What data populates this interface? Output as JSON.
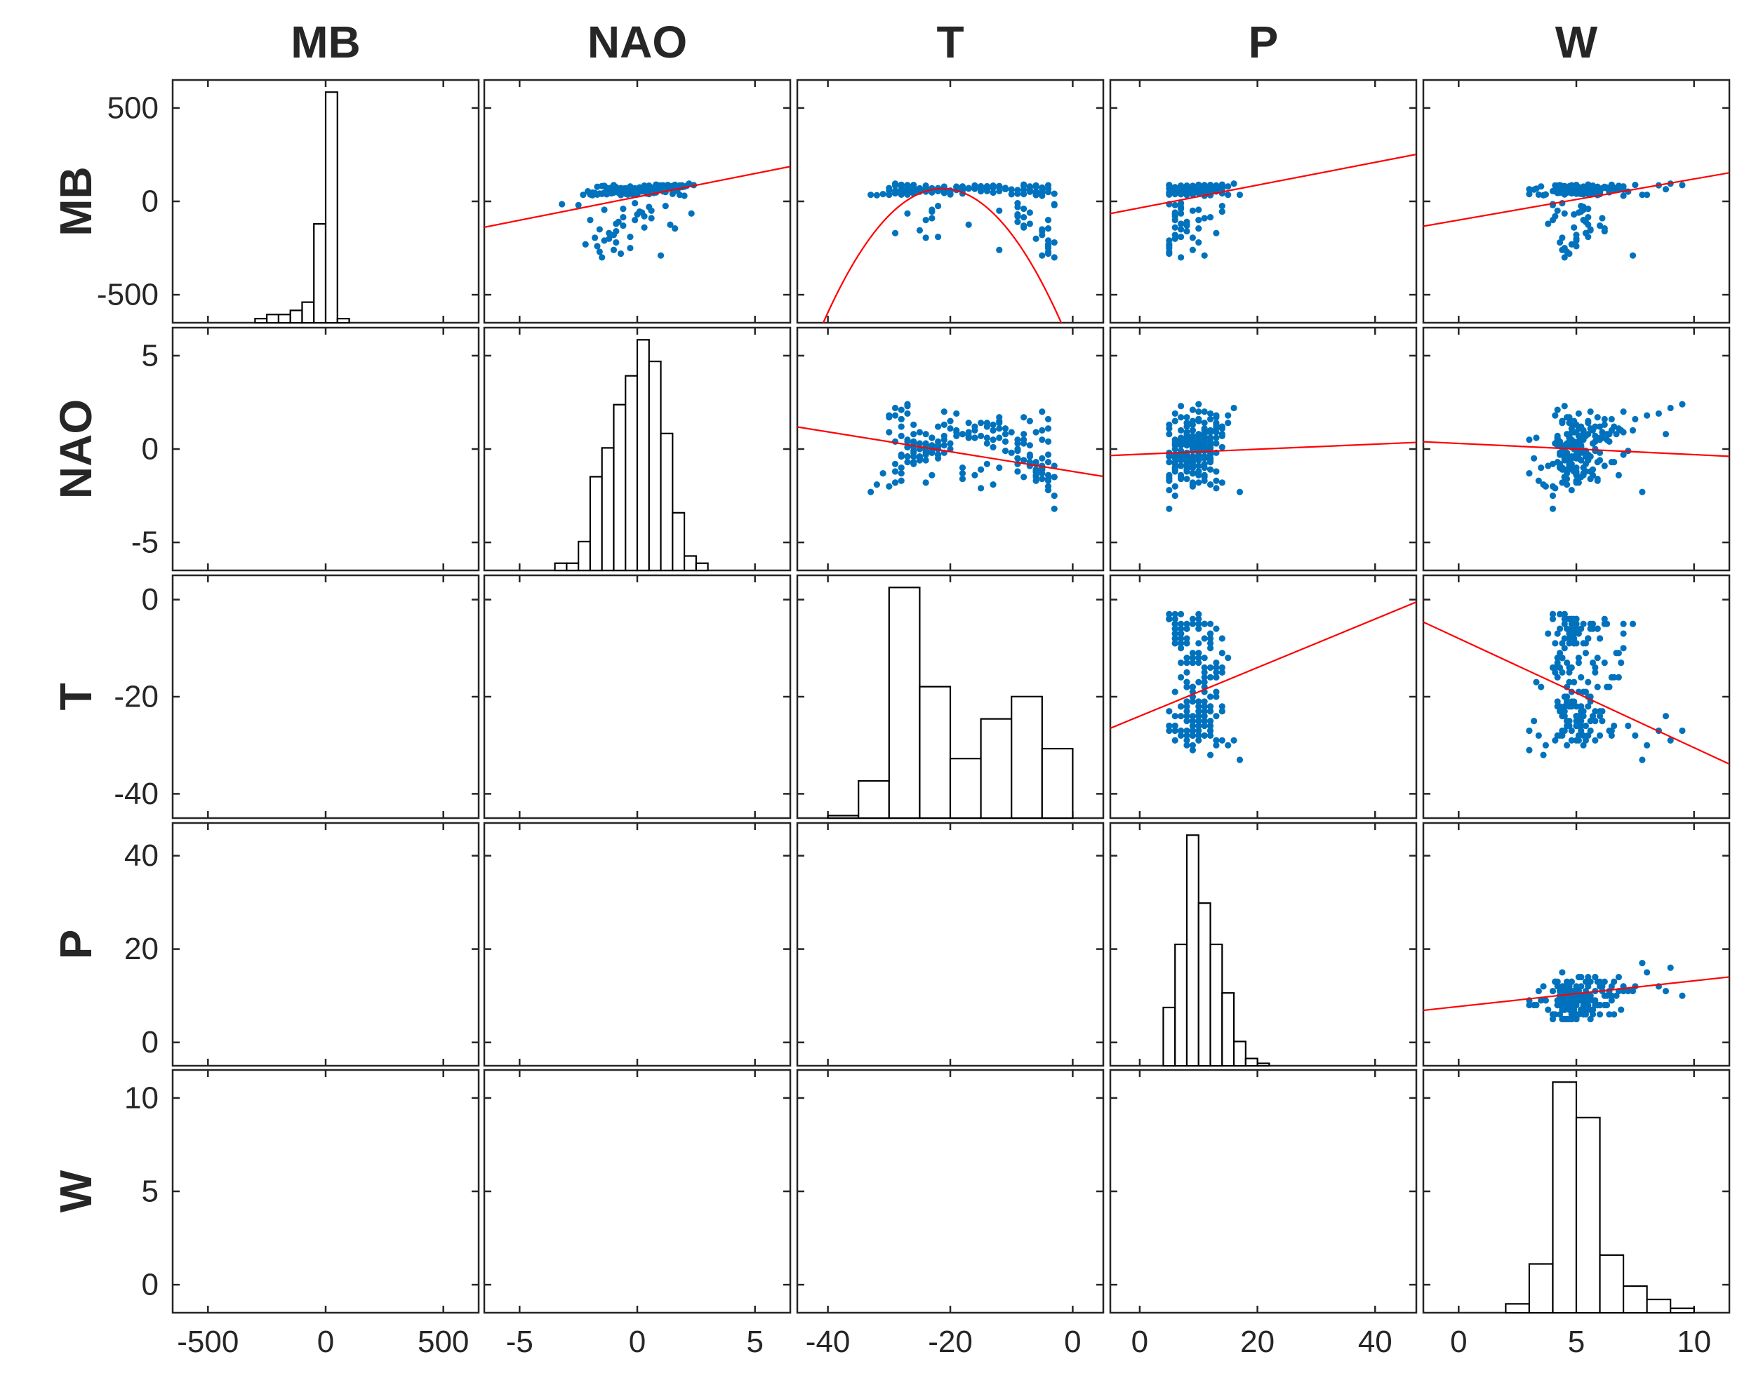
{
  "chart_data": {
    "type": "scatter-matrix",
    "variables": [
      "MB",
      "NAO",
      "T",
      "P",
      "W"
    ],
    "limits": {
      "MB": [
        -650,
        650
      ],
      "NAO": [
        -6.5,
        6.5
      ],
      "T": [
        -45,
        5
      ],
      "P": [
        -5,
        47
      ],
      "W": [
        -1.5,
        11.5
      ]
    },
    "ticks": {
      "MB": [
        -500,
        0,
        500
      ],
      "NAO": [
        -5,
        0,
        5
      ],
      "T": [
        -40,
        -20,
        0
      ],
      "P": [
        0,
        20,
        40
      ],
      "W": [
        0,
        5,
        10
      ]
    },
    "tick_labels": {
      "MB": [
        "-500",
        "0",
        "500"
      ],
      "NAO": [
        "-5",
        "0",
        "5"
      ],
      "T": [
        "-40",
        "-20",
        "0"
      ],
      "P": [
        "0",
        "20",
        "40"
      ],
      "W": [
        "0",
        "5",
        "10"
      ]
    },
    "colors": {
      "points": "#0072BD",
      "fit": "#FF0000",
      "bars": "#000000",
      "axes": "#262626"
    },
    "histograms": {
      "MB": {
        "edges": [
          -300,
          -250,
          -200,
          -150,
          -100,
          -50,
          0,
          50,
          100,
          150
        ],
        "counts": [
          1,
          2,
          2,
          3,
          5,
          24,
          56,
          1,
          0
        ],
        "count_max": 56,
        "note": "bar heights relative to tallest bar"
      },
      "NAO": {
        "edges": [
          -3.5,
          -3,
          -2.5,
          -2,
          -1.5,
          -1,
          -0.5,
          0,
          0.5,
          1,
          1.5,
          2,
          2.5,
          3
        ],
        "counts": [
          1,
          1,
          4,
          13,
          17,
          23,
          27,
          32,
          29,
          19,
          8,
          2,
          1
        ]
      },
      "T": {
        "edges": [
          -40,
          -35,
          -30,
          -25,
          -20,
          -15,
          -10,
          -5,
          0
        ],
        "counts": [
          1,
          15,
          93,
          53,
          24,
          40,
          49,
          28
        ]
      },
      "P": {
        "edges": [
          4,
          6,
          8,
          10,
          12,
          14,
          16,
          18,
          20,
          22
        ],
        "counts": [
          24,
          50,
          95,
          67,
          50,
          30,
          10,
          3,
          1
        ]
      },
      "W": {
        "edges": [
          2,
          3,
          4,
          5,
          6,
          7,
          8,
          9,
          10
        ],
        "counts": [
          2,
          11,
          52,
          44,
          13,
          6,
          3,
          1
        ]
      }
    },
    "fits": [
      {
        "x": "NAO",
        "y": "MB",
        "type": "linear",
        "coef": [
          25,
          24
        ]
      },
      {
        "x": "T",
        "y": "MB",
        "type": "quadratic",
        "coef": [
          -1.9,
          -81,
          -795
        ]
      },
      {
        "x": "P",
        "y": "MB",
        "type": "linear",
        "coef": [
          6.1,
          -35
        ]
      },
      {
        "x": "W",
        "y": "MB",
        "type": "linear",
        "coef": [
          22,
          -100
        ]
      },
      {
        "x": "T",
        "y": "NAO",
        "type": "linear",
        "coef": [
          -0.053,
          -1.2
        ]
      },
      {
        "x": "P",
        "y": "NAO",
        "type": "linear",
        "coef": [
          0.0135,
          -0.28
        ]
      },
      {
        "x": "W",
        "y": "NAO",
        "type": "linear",
        "coef": [
          -0.06,
          0.3
        ]
      },
      {
        "x": "P",
        "y": "T",
        "type": "linear",
        "coef": [
          0.5,
          -24
        ]
      },
      {
        "x": "W",
        "y": "T",
        "type": "linear",
        "coef": [
          -2.25,
          -8
        ]
      },
      {
        "x": "W",
        "y": "P",
        "type": "linear",
        "coef": [
          0.55,
          7.7
        ]
      }
    ],
    "scatter_panels": [
      {
        "x": "NAO",
        "y": "MB"
      },
      {
        "x": "T",
        "y": "MB"
      },
      {
        "x": "P",
        "y": "MB"
      },
      {
        "x": "W",
        "y": "MB"
      },
      {
        "x": "T",
        "y": "NAO"
      },
      {
        "x": "P",
        "y": "NAO"
      },
      {
        "x": "W",
        "y": "NAO"
      },
      {
        "x": "P",
        "y": "T"
      },
      {
        "x": "W",
        "y": "T"
      },
      {
        "x": "W",
        "y": "P"
      }
    ],
    "points": {
      "MB": [
        60,
        70,
        50,
        80,
        90,
        30,
        -100,
        -300,
        75,
        60,
        40,
        55,
        65,
        -200,
        -250,
        85,
        45,
        -50,
        70,
        35,
        58,
        68,
        -120,
        78,
        48,
        62,
        -20,
        52,
        88,
        74,
        -280,
        42,
        66,
        57,
        -150,
        71,
        63,
        95,
        38,
        -80,
        59,
        69,
        46,
        81,
        -180,
        54,
        61,
        33,
        77,
        67,
        -60,
        49,
        73,
        56,
        84,
        -230,
        44,
        64,
        -10,
        79,
        51,
        72,
        36,
        -140,
        86,
        58,
        66,
        41,
        -90,
        76,
        53,
        68,
        47,
        82,
        -270,
        60,
        39,
        70,
        55,
        -40,
        87,
        62,
        50,
        74,
        -110,
        65,
        43,
        78,
        57,
        -210,
        69,
        34,
        83,
        52,
        -30,
        61,
        71,
        45,
        80,
        -160,
        56,
        67,
        37,
        89,
        -70,
        63,
        48,
        75,
        58,
        -240,
        54,
        72,
        40,
        85,
        -130,
        66,
        59,
        44,
        77,
        -15,
        53,
        68,
        35,
        81,
        -190,
        61,
        49,
        73,
        57,
        -100,
        64,
        42,
        86,
        55,
        -260,
        70,
        46,
        79,
        60,
        -55,
        67,
        38,
        83,
        51,
        -170,
        62,
        74,
        47,
        88,
        -85,
        58,
        65,
        43,
        76,
        -220,
        56,
        69,
        36,
        82,
        -25,
        63,
        50,
        71,
        54,
        -145,
        68,
        41,
        84,
        59,
        -290,
        57,
        73,
        45,
        78,
        -65,
        66,
        52,
        39,
        87,
        -125,
        60,
        70,
        48,
        80,
        -195,
        55,
        64,
        44,
        75,
        -45,
        62,
        71,
        37,
        85,
        -155,
        59,
        67,
        50,
        79,
        -235,
        53,
        72,
        46,
        83,
        -95,
        65,
        58,
        40,
        86,
        -175,
        61,
        69
      ],
      "NAO": [
        0.3,
        -0.5,
        1.2,
        -1.0,
        0.8,
        2.0,
        -2.0,
        -1.5,
        0.1,
        -0.2,
        1.5,
        -0.8,
        0.5,
        -1.2,
        -0.3,
        1.0,
        -1.8,
        0.6,
        -0.1,
        1.8,
        0.2,
        -0.6,
        -0.9,
        1.3,
        -0.4,
        0.7,
        -2.5,
        0.0,
        1.6,
        -1.1,
        -0.7,
        0.4,
        1.1,
        -0.3,
        -1.6,
        0.9,
        -0.5,
        2.2,
        -1.3,
        0.3,
        0.6,
        -0.2,
        -1.4,
        1.4,
        -1.0,
        0.1,
        0.8,
        -1.9,
        1.7,
        -0.6,
        0.2,
        -0.8,
        1.2,
        0.0,
        0.5,
        -2.2,
        -0.4,
        0.9,
        -0.1,
        1.0,
        -1.2,
        0.7,
        -1.7,
        0.3,
        1.9,
        -0.5,
        0.4,
        -1.5,
        0.6,
        -0.9,
        1.1,
        -0.3,
        -1.0,
        1.5,
        -1.6,
        -0.2,
        -1.3,
        0.8,
        0.1,
        -0.6,
        2.4,
        0.3,
        -1.1,
        1.3,
        -0.8,
        -0.4,
        -1.8,
        1.0,
        0.2,
        -1.4,
        0.7,
        -0.7,
        2.1,
        -0.1,
        0.5,
        0.9,
        -0.3,
        -1.2,
        1.4,
        -0.9,
        0.4,
        0.6,
        -2.0,
        1.6,
        0.0,
        -0.5,
        -0.2,
        1.2,
        0.3,
        -1.7,
        0.1,
        0.8,
        -1.5,
        1.8,
        -0.6,
        0.5,
        -0.4,
        -1.1,
        1.0,
        -3.2,
        0.2,
        0.6,
        -2.3,
        1.4,
        -0.3,
        -0.7,
        0.4,
        -1.3,
        1.7,
        -0.1,
        -0.4,
        -1.6,
        1.1,
        0.3,
        -1.0,
        0.9,
        -0.8,
        2.0,
        -0.5,
        0.1,
        0.7,
        -0.2,
        -1.4,
        1.5,
        -1.2,
        0.2,
        0.5,
        -1.9,
        1.3,
        -0.6,
        -0.3,
        0.8,
        -1.1,
        1.9,
        -0.9,
        0.0,
        0.6,
        -0.4,
        -1.5,
        1.2,
        -0.7,
        0.4,
        0.9,
        -2.1,
        1.6,
        -0.2,
        -0.5,
        0.3,
        -1.3,
        1.0,
        -0.8,
        0.1,
        0.7,
        -1.7,
        2.3,
        -0.1,
        -0.6,
        0.5,
        -1.0,
        1.4,
        -1.2,
        0.2,
        0.8,
        -0.3,
        -1.8,
        1.1,
        -0.5,
        0.4,
        0.6,
        -1.4,
        1.7,
        -0.7,
        0.0,
        0.9
      ],
      "T": [
        -25,
        -22,
        -28,
        -18,
        -8,
        -5,
        -4,
        -3,
        -26,
        -24,
        -20,
        -14,
        -27,
        -6,
        -4,
        -16,
        -29,
        -12,
        -23,
        -30,
        -21,
        -25,
        -7,
        -13,
        -27,
        -19,
        -3,
        -24,
        -28,
        -15,
        -4,
        -26,
        -11,
        -22,
        -5,
        -17,
        -25,
        -29,
        -28,
        -9,
        -23,
        -21,
        -6,
        -14,
        -5,
        -27,
        -18,
        -32,
        -12,
        -24,
        -7,
        -26,
        -16,
        -22,
        -13,
        -4,
        -28,
        -10,
        -9,
        -19,
        -6,
        -15,
        -28,
        -8,
        -27,
        -25,
        -11,
        -3,
        -23,
        -7,
        -20,
        -24,
        -5,
        -12,
        -4,
        -26,
        -31,
        -18,
        -22,
        -8,
        -27,
        -14,
        -5,
        -21,
        -9,
        -25,
        -29,
        -13,
        -23,
        -4,
        -17,
        -6,
        -28,
        -26,
        -9,
        -19,
        -24,
        -6,
        -12,
        -5,
        -22,
        -16,
        -30,
        -28,
        -9,
        -25,
        -23,
        -14,
        -20,
        -4,
        -27,
        -11,
        -6,
        -29,
        -8,
        -21,
        -26,
        -5,
        -13,
        -3,
        -24,
        -17,
        -33,
        -15,
        -22,
        -7,
        -27,
        -5,
        -30,
        -24,
        -7,
        -18,
        -4,
        -26,
        -12,
        -25,
        -6,
        -21,
        -9,
        -23,
        -28,
        -10,
        -16,
        -7,
        -29,
        -22,
        -5,
        -13,
        -26,
        -8,
        -28,
        -24,
        -6,
        -19,
        -3,
        -25,
        -14,
        -27,
        -8,
        -22,
        -26,
        -4,
        -30,
        -15,
        -4,
        -23,
        -9,
        -24,
        -18,
        -5,
        -29,
        -13,
        -21,
        -6,
        -27,
        -11,
        -25,
        -8,
        -28,
        -17,
        -9,
        -22,
        -26,
        -7,
        -24,
        -12,
        -5,
        -29,
        -16,
        -23,
        -8,
        -27,
        -20,
        -6,
        -25,
        -14,
        -4,
        -28
      ],
      "P": [
        10,
        12,
        8,
        9,
        14,
        11,
        6,
        7,
        10,
        13,
        9,
        11,
        8,
        6,
        5,
        12,
        10,
        9,
        11,
        15,
        8,
        10,
        7,
        13,
        9,
        11,
        6,
        10,
        12,
        8,
        5,
        9,
        14,
        10,
        7,
        11,
        8,
        16,
        9,
        6,
        12,
        10,
        7,
        13,
        6,
        9,
        11,
        12,
        8,
        10,
        6,
        9,
        13,
        11,
        8,
        5,
        10,
        12,
        7,
        9,
        8,
        14,
        11,
        6,
        12,
        9,
        10,
        5,
        11,
        7,
        13,
        8,
        6,
        10,
        5,
        12,
        9,
        8,
        11,
        7,
        10,
        13,
        6,
        9,
        8,
        11,
        14,
        7,
        12,
        5,
        10,
        8,
        9,
        11,
        7,
        13,
        6,
        10,
        15,
        8,
        12,
        7,
        9,
        10,
        6,
        11,
        8,
        14,
        9,
        5,
        12,
        10,
        7,
        13,
        8,
        11,
        6,
        12,
        9,
        5,
        10,
        8,
        17,
        11,
        7,
        12,
        6,
        9,
        13,
        10,
        7,
        8,
        5,
        11,
        9,
        12,
        6,
        10,
        8,
        14,
        9,
        7,
        11,
        6,
        13,
        8,
        10,
        9,
        5,
        12,
        7,
        11,
        8,
        6,
        10,
        9,
        12,
        5,
        11,
        14,
        6,
        9,
        8,
        13,
        10,
        5,
        12,
        7,
        9,
        11,
        6,
        10,
        8,
        13,
        7,
        9,
        12,
        6,
        11,
        8,
        10,
        7,
        5,
        12,
        9,
        11,
        6,
        8,
        13,
        10,
        7,
        9,
        12
      ],
      "W": [
        5,
        4.5,
        6,
        3.5,
        5.5,
        7,
        4,
        4.5,
        5,
        6,
        5.5,
        4,
        3,
        5,
        4.5,
        6.5,
        5,
        4.2,
        5.8,
        8,
        4.6,
        5.2,
        3.8,
        6.2,
        4.8,
        5.4,
        4,
        5,
        7.5,
        4.4,
        4.7,
        5.1,
        6.8,
        4.3,
        5.6,
        4.9,
        3.2,
        9,
        5.3,
        4.1,
        6,
        4.6,
        5.7,
        4.8,
        5,
        5.2,
        6.4,
        3.6,
        5.9,
        4.5,
        5.1,
        4.7,
        6.6,
        5,
        4.2,
        4.8,
        5.5,
        7,
        4.4,
        5.3,
        4.6,
        5.8,
        3.4,
        4.9,
        8.5,
        5.1,
        4.3,
        4.5,
        6.1,
        4.7,
        5.6,
        5,
        5.3,
        4.4,
        4.6,
        5.2,
        3,
        6.3,
        4.8,
        5.5,
        9.5,
        4.1,
        5.7,
        4.9,
        5.4,
        4.6,
        5.1,
        6.9,
        4.5,
        5,
        4.7,
        5.9,
        4.2,
        7.2,
        5.3,
        4.8,
        5,
        5.6,
        4.4,
        6.2,
        4.7,
        5.2,
        3.7,
        6.5,
        4.9,
        5.1,
        4.3,
        5.8,
        4.6,
        5,
        4.4,
        6.7,
        5.2,
        4.1,
        6,
        4.8,
        5.4,
        4.5,
        5.7,
        4,
        5.1,
        3.3,
        7.8,
        4.7,
        5.5,
        4.2,
        6.4,
        5,
        4.6,
        5.3,
        4.9,
        5.9,
        4.8,
        5,
        4.4,
        6.1,
        4.3,
        5.6,
        4.7,
        5.2,
        5.1,
        4.5,
        6.8,
        4.9,
        5.4,
        4.2,
        6.3,
        4.6,
        5,
        5.5,
        4.4,
        8.8,
        4.8,
        5.1,
        4.3,
        5.8,
        4.7,
        5.6,
        4.5,
        5.2,
        6.6,
        4.9,
        5.3,
        4.1,
        6.2,
        4.4,
        5,
        5.7,
        4.6,
        7.4,
        4.8,
        5.1,
        4.2,
        5.9,
        4.5,
        5.4,
        4.7,
        6,
        4.3,
        5.5,
        4.9,
        5.2,
        4.6,
        7,
        4.4,
        5.1,
        4.8,
        5.8,
        4.2,
        5.3,
        4.7,
        6.5,
        4.5,
        5,
        5.6,
        4.3
      ]
    }
  }
}
